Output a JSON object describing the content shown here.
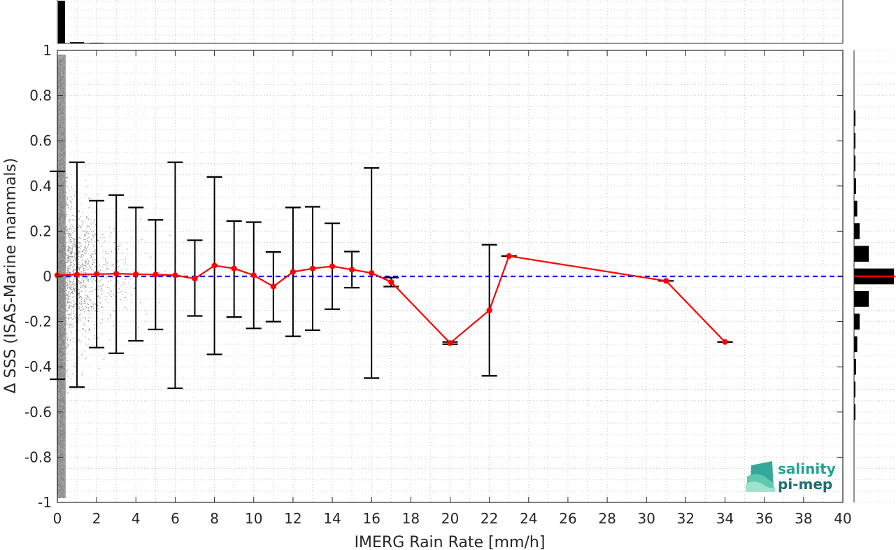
{
  "chart_data": {
    "type": "scatter",
    "xlabel": "IMERG Rain Rate [mm/h]",
    "ylabel": "Δ SSS (ISAS-Marine mammals)",
    "xlim": [
      0,
      40
    ],
    "ylim": [
      -1,
      1
    ],
    "x_ticks": [
      0,
      2,
      4,
      6,
      8,
      10,
      12,
      14,
      16,
      18,
      20,
      22,
      24,
      26,
      28,
      30,
      32,
      34,
      36,
      38,
      40
    ],
    "y_ticks": [
      -1,
      -0.8,
      -0.6,
      -0.4,
      -0.2,
      0,
      0.2,
      0.4,
      0.6,
      0.8,
      1
    ],
    "y_tick_labels": [
      "-1",
      "-0.8",
      "-0.6",
      "-0.4",
      "-0.2",
      "0",
      "0.2",
      "0.4",
      "0.6",
      "0.8",
      "1"
    ],
    "grid": "dotted, minor",
    "scatter_color": "#808080",
    "zero_line": {
      "y": 0,
      "color": "#0000ff",
      "style": "dashed"
    },
    "bin_means": {
      "color": "#ff0000",
      "points": [
        {
          "x": 0,
          "y": 0.005,
          "lo": -0.455,
          "hi": 0.465
        },
        {
          "x": 1,
          "y": 0.008,
          "lo": -0.49,
          "hi": 0.505
        },
        {
          "x": 2,
          "y": 0.01,
          "lo": -0.315,
          "hi": 0.335
        },
        {
          "x": 3,
          "y": 0.012,
          "lo": -0.34,
          "hi": 0.36
        },
        {
          "x": 4,
          "y": 0.01,
          "lo": -0.285,
          "hi": 0.305
        },
        {
          "x": 5,
          "y": 0.008,
          "lo": -0.235,
          "hi": 0.25
        },
        {
          "x": 6,
          "y": 0.005,
          "lo": -0.495,
          "hi": 0.505
        },
        {
          "x": 7,
          "y": -0.01,
          "lo": -0.175,
          "hi": 0.16
        },
        {
          "x": 8,
          "y": 0.048,
          "lo": -0.345,
          "hi": 0.44
        },
        {
          "x": 9,
          "y": 0.035,
          "lo": -0.18,
          "hi": 0.245
        },
        {
          "x": 10,
          "y": 0.005,
          "lo": -0.23,
          "hi": 0.24
        },
        {
          "x": 11,
          "y": -0.045,
          "lo": -0.2,
          "hi": 0.108
        },
        {
          "x": 12,
          "y": 0.02,
          "lo": -0.265,
          "hi": 0.305
        },
        {
          "x": 13,
          "y": 0.035,
          "lo": -0.238,
          "hi": 0.308
        },
        {
          "x": 14,
          "y": 0.045,
          "lo": -0.145,
          "hi": 0.235
        },
        {
          "x": 15,
          "y": 0.03,
          "lo": -0.05,
          "hi": 0.11
        },
        {
          "x": 16,
          "y": 0.015,
          "lo": -0.45,
          "hi": 0.48
        },
        {
          "x": 17,
          "y": -0.025,
          "lo": -0.045,
          "hi": -0.005
        },
        {
          "x": 20,
          "y": -0.295,
          "lo": -0.3,
          "hi": -0.29
        },
        {
          "x": 22,
          "y": -0.15,
          "lo": -0.44,
          "hi": 0.14
        },
        {
          "x": 23,
          "y": 0.09,
          "lo": 0.09,
          "hi": 0.09
        },
        {
          "x": 31,
          "y": -0.02,
          "lo": -0.02,
          "hi": -0.02
        },
        {
          "x": 34,
          "y": -0.29,
          "lo": -0.29,
          "hi": -0.29
        }
      ]
    },
    "top_histogram": {
      "bin_centers": [
        0.25,
        1,
        2,
        3
      ],
      "relative_heights": [
        1.0,
        0.03,
        0.015,
        0.008
      ]
    },
    "right_histogram": {
      "bin_centers": [
        -0.6,
        -0.5,
        -0.4,
        -0.3,
        -0.2,
        -0.1,
        0,
        0.1,
        0.2,
        0.3,
        0.4,
        0.5,
        0.6,
        0.7
      ],
      "relative_heights": [
        0.02,
        0.03,
        0.05,
        0.08,
        0.14,
        0.37,
        1.0,
        0.37,
        0.14,
        0.08,
        0.05,
        0.03,
        0.02,
        0.01
      ]
    }
  },
  "logo": {
    "line1": "salinity",
    "line2": "pi-mep",
    "color": "#21a394"
  }
}
